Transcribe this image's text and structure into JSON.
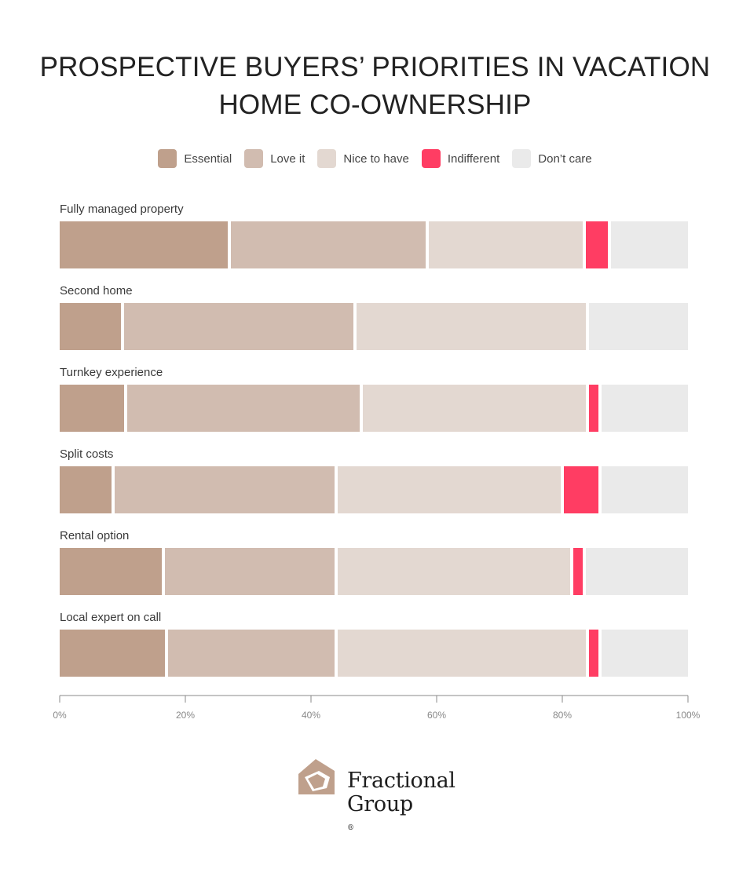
{
  "title": "PROSPECTIVE BUYERS’ PRIORITIES IN VACATION HOME CO-OWNERSHIP",
  "brand": {
    "line1": "Fractional",
    "line2": "Group",
    "reg": "®",
    "icon": "house-logo-icon"
  },
  "colors": {
    "Essential": "#bfa08c",
    "Love it": "#d1bcb0",
    "Nice to have": "#e3d8d1",
    "Indifferent": "#ff3d63",
    "Don’t care": "#eaeaea",
    "axis": "#888888",
    "label": "#3a3a3a",
    "brand": "#bfa08c"
  },
  "chart_data": {
    "type": "bar",
    "orientation": "horizontal",
    "stacked": true,
    "categories": [
      "Fully managed property",
      "Second home",
      "Turnkey experience",
      "Split costs",
      "Rental option",
      "Local expert on call"
    ],
    "series": [
      {
        "name": "Essential",
        "values": [
          27,
          10,
          10.5,
          8.5,
          16.5,
          17
        ]
      },
      {
        "name": "Love it",
        "values": [
          31.5,
          37,
          37.5,
          35.5,
          27.5,
          27
        ]
      },
      {
        "name": "Nice to have",
        "values": [
          25,
          37,
          36,
          36,
          37.5,
          40
        ]
      },
      {
        "name": "Indifferent",
        "values": [
          4,
          0,
          2,
          6,
          2,
          2
        ]
      },
      {
        "name": "Don’t care",
        "values": [
          12.5,
          16,
          14,
          14,
          16.5,
          14
        ]
      }
    ],
    "xlim": [
      0,
      100
    ],
    "xticks": [
      "0%",
      "20%",
      "40%",
      "60%",
      "80%",
      "100%"
    ],
    "legend_position": "top-center",
    "grid": false
  }
}
